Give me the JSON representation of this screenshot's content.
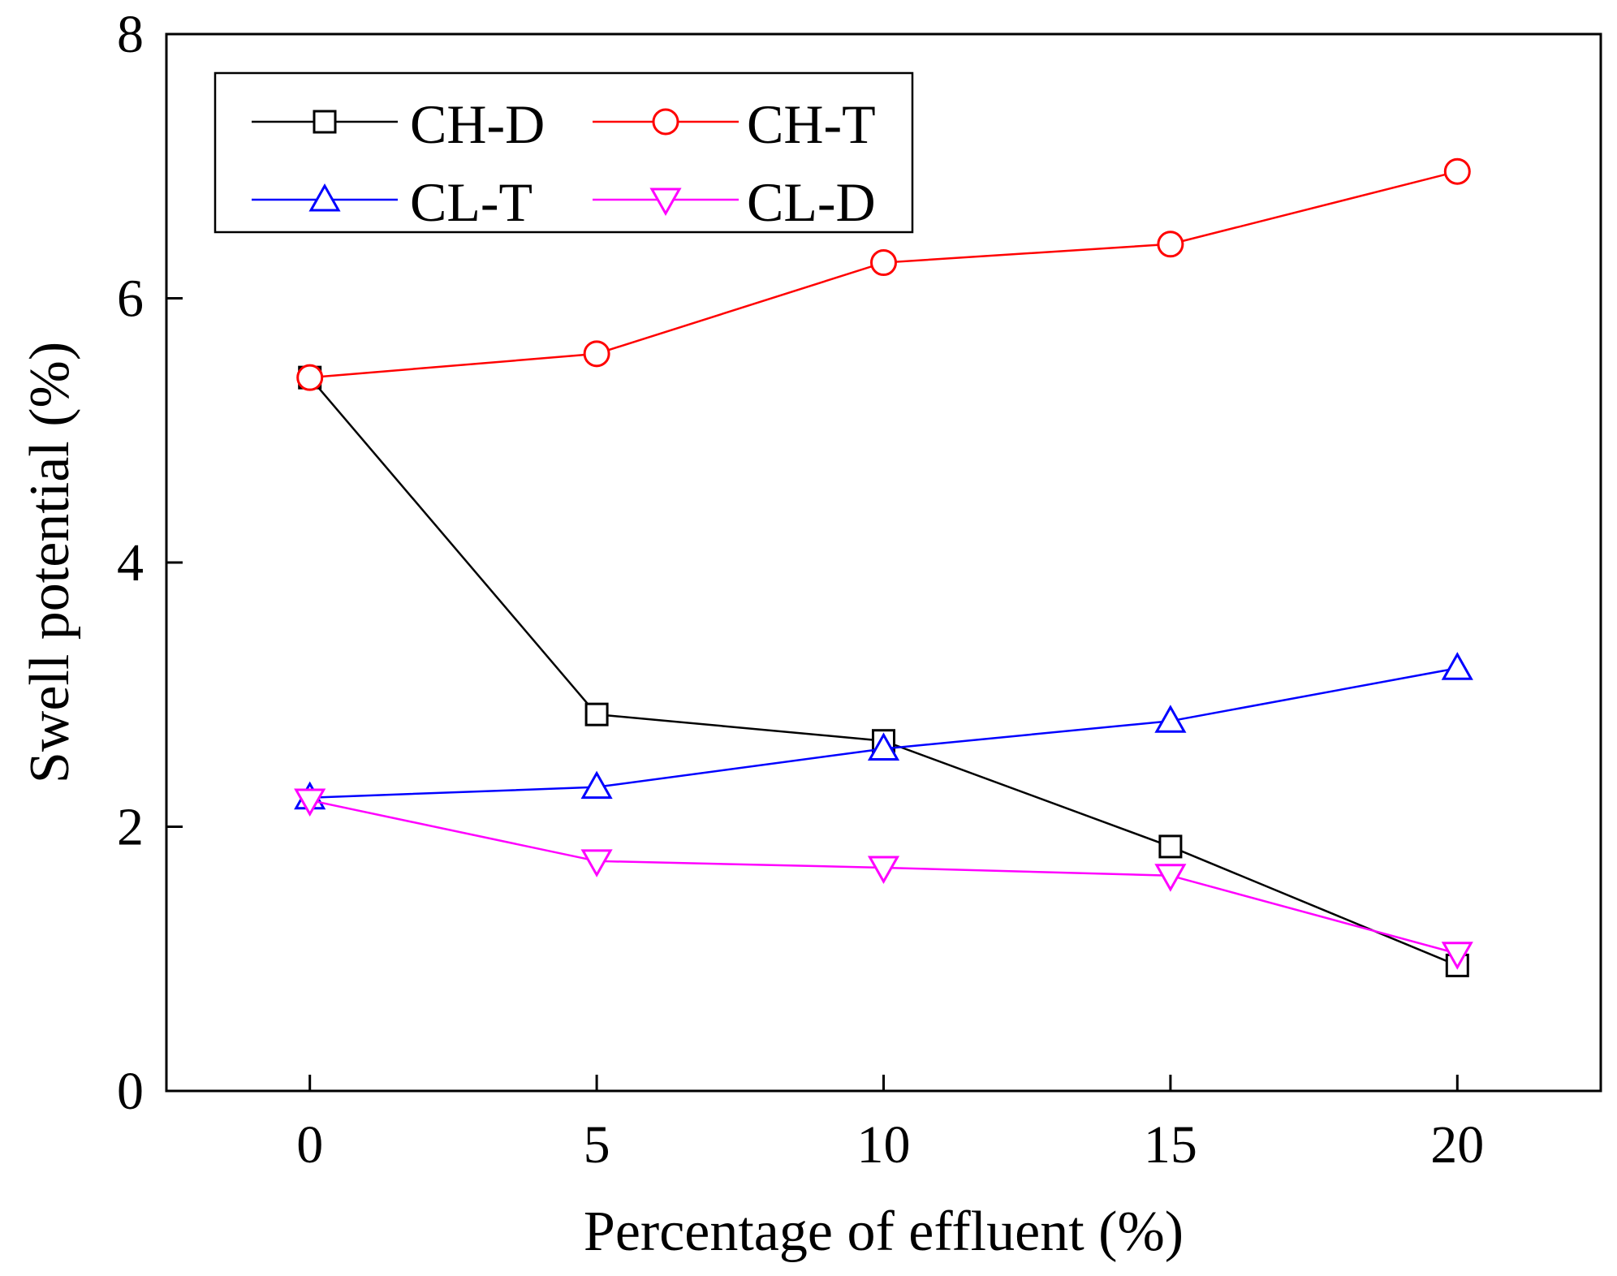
{
  "chart_data": {
    "type": "line",
    "title": "",
    "xlabel": "Percentage of effluent (%)",
    "ylabel": "Swell potential (%)",
    "x": [
      0,
      5,
      10,
      15,
      20
    ],
    "xlim": [
      -2.5,
      22.5
    ],
    "ylim": [
      0,
      8
    ],
    "x_ticks": [
      "0",
      "5",
      "10",
      "15",
      "20"
    ],
    "y_ticks": [
      "0",
      "2",
      "4",
      "6",
      "8"
    ],
    "grid": false,
    "legend_position": "top-left",
    "series": [
      {
        "name": "CH-D",
        "marker": "square",
        "color": "#000000",
        "values": [
          5.4,
          2.85,
          2.65,
          1.85,
          0.95
        ]
      },
      {
        "name": "CH-T",
        "marker": "circle",
        "color": "#ff0000",
        "values": [
          5.4,
          5.58,
          6.27,
          6.41,
          6.96
        ]
      },
      {
        "name": "CL-T",
        "marker": "triangle-up",
        "color": "#0000ff",
        "values": [
          2.22,
          2.3,
          2.59,
          2.8,
          3.2
        ]
      },
      {
        "name": "CL-D",
        "marker": "triangle-down",
        "color": "#ff00ff",
        "values": [
          2.2,
          1.74,
          1.69,
          1.63,
          1.04
        ]
      }
    ]
  }
}
